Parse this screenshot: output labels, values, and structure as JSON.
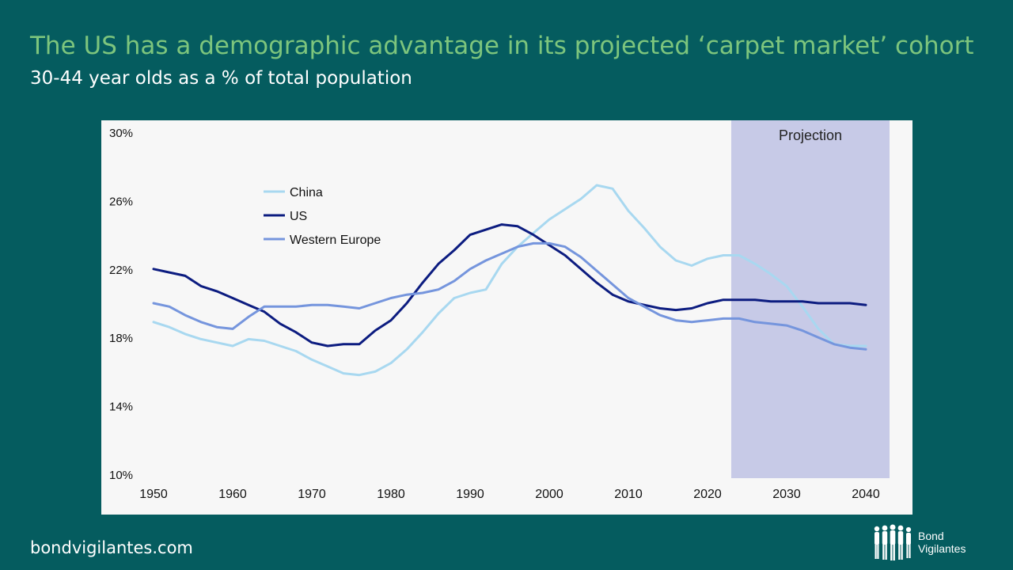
{
  "slide": {
    "title": "The US has a demographic advantage in its projected ‘carpet market’ cohort",
    "subtitle": "30-44 year olds as a % of total population",
    "footer_url": "bondvigilantes.com",
    "logo_line1": "Bond",
    "logo_line2": "Vigilantes"
  },
  "colors": {
    "background": "#055c5f",
    "title": "#7dc57d",
    "china": "#a8d8f0",
    "us": "#0c1c80",
    "western_europe": "#7595dd",
    "projection_band": "#c7cae7"
  },
  "chart_data": {
    "type": "line",
    "title": "",
    "xlabel": "",
    "ylabel": "",
    "xlim": [
      1950,
      2040
    ],
    "ylim": [
      10,
      30
    ],
    "x_ticks": [
      "1950",
      "1960",
      "1970",
      "1980",
      "1990",
      "2000",
      "2010",
      "2020",
      "2030",
      "2040"
    ],
    "y_ticks": [
      "10%",
      "14%",
      "18%",
      "22%",
      "26%",
      "30%"
    ],
    "y_tick_values": [
      10,
      14,
      18,
      22,
      26,
      30
    ],
    "projection": {
      "label": "Projection",
      "from": 2023,
      "to": 2043
    },
    "legend_position": "upper-left",
    "x": [
      1950,
      1952,
      1954,
      1956,
      1958,
      1960,
      1962,
      1964,
      1966,
      1968,
      1970,
      1972,
      1974,
      1976,
      1978,
      1980,
      1982,
      1984,
      1986,
      1988,
      1990,
      1992,
      1994,
      1996,
      1998,
      2000,
      2002,
      2004,
      2006,
      2008,
      2010,
      2012,
      2014,
      2016,
      2018,
      2020,
      2022,
      2024,
      2026,
      2028,
      2030,
      2032,
      2034,
      2036,
      2038,
      2040
    ],
    "series": [
      {
        "name": "China",
        "color": "#a8d8f0",
        "values": [
          18.9,
          18.6,
          18.2,
          17.9,
          17.7,
          17.5,
          17.9,
          17.8,
          17.5,
          17.2,
          16.7,
          16.3,
          15.9,
          15.8,
          16.0,
          16.5,
          17.3,
          18.3,
          19.4,
          20.3,
          20.6,
          20.8,
          22.3,
          23.3,
          24.1,
          24.9,
          25.5,
          26.1,
          26.9,
          26.7,
          25.4,
          24.4,
          23.3,
          22.5,
          22.2,
          22.6,
          22.8,
          22.8,
          22.3,
          21.7,
          21.0,
          19.8,
          18.5,
          17.6,
          17.5,
          17.5
        ]
      },
      {
        "name": "US",
        "color": "#0c1c80",
        "values": [
          22.0,
          21.8,
          21.6,
          21.0,
          20.7,
          20.3,
          19.9,
          19.5,
          18.8,
          18.3,
          17.7,
          17.5,
          17.6,
          17.6,
          18.4,
          19.0,
          20.0,
          21.2,
          22.3,
          23.1,
          24.0,
          24.3,
          24.6,
          24.5,
          24.0,
          23.4,
          22.8,
          22.0,
          21.2,
          20.5,
          20.1,
          19.9,
          19.7,
          19.6,
          19.7,
          20.0,
          20.2,
          20.2,
          20.2,
          20.1,
          20.1,
          20.1,
          20.0,
          20.0,
          20.0,
          19.9
        ]
      },
      {
        "name": "Western Europe",
        "color": "#7595dd",
        "values": [
          20.0,
          19.8,
          19.3,
          18.9,
          18.6,
          18.5,
          19.2,
          19.8,
          19.8,
          19.8,
          19.9,
          19.9,
          19.8,
          19.7,
          20.0,
          20.3,
          20.5,
          20.6,
          20.8,
          21.3,
          22.0,
          22.5,
          22.9,
          23.3,
          23.5,
          23.5,
          23.3,
          22.7,
          21.9,
          21.1,
          20.3,
          19.8,
          19.3,
          19.0,
          18.9,
          19.0,
          19.1,
          19.1,
          18.9,
          18.8,
          18.7,
          18.4,
          18.0,
          17.6,
          17.4,
          17.3
        ]
      }
    ]
  }
}
